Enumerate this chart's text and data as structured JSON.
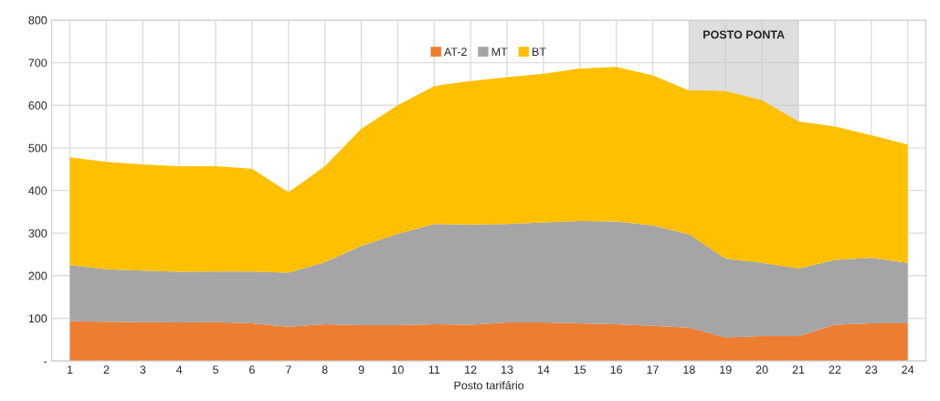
{
  "chart_data": {
    "type": "area",
    "stacked": true,
    "xlabel": "Posto tarifário",
    "categories": [
      "1",
      "2",
      "3",
      "4",
      "5",
      "6",
      "7",
      "8",
      "9",
      "10",
      "11",
      "12",
      "13",
      "14",
      "15",
      "16",
      "17",
      "18",
      "19",
      "20",
      "21",
      "22",
      "23",
      "24"
    ],
    "series": [
      {
        "name": "AT-2",
        "color": "#ed7d31",
        "values": [
          93,
          92,
          91,
          90,
          91,
          88,
          80,
          86,
          84,
          84,
          86,
          85,
          90,
          90,
          88,
          86,
          82,
          78,
          55,
          58,
          58,
          85,
          88,
          88
        ]
      },
      {
        "name": "MT",
        "color": "#a5a5a5",
        "values": [
          132,
          123,
          121,
          119,
          119,
          122,
          127,
          146,
          186,
          214,
          235,
          235,
          231,
          235,
          240,
          241,
          236,
          219,
          185,
          172,
          159,
          152,
          154,
          142
        ]
      },
      {
        "name": "BT",
        "color": "#ffc000",
        "values": [
          253,
          252,
          249,
          248,
          247,
          241,
          189,
          225,
          275,
          302,
          324,
          337,
          345,
          349,
          358,
          363,
          352,
          338,
          393,
          382,
          345,
          313,
          288,
          278
        ]
      }
    ],
    "ylim": [
      0,
      800
    ],
    "yticks": [
      {
        "value": 0,
        "label": "-"
      },
      100,
      200,
      300,
      400,
      500,
      600,
      700,
      800
    ],
    "bands": [
      {
        "axis": "x",
        "from": "18",
        "to": "21",
        "label": "POSTO PONTA",
        "color": "#c8c8c8"
      }
    ],
    "grid": true,
    "legend": "top"
  }
}
